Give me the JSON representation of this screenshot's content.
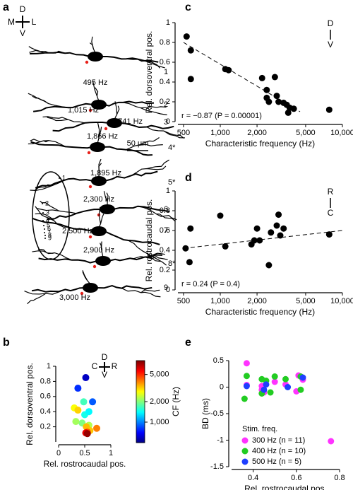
{
  "panel_labels": [
    "a",
    "b",
    "c",
    "d",
    "e"
  ],
  "panel_a": {
    "orientation": {
      "top": "D",
      "left": "M",
      "right": "L",
      "bottom": "V"
    },
    "scale_bar": "50 μm",
    "cells": [
      {
        "number": "1",
        "cf": "495 Hz"
      },
      {
        "number": "2",
        "cf": "1,015 Hz"
      },
      {
        "number": "3",
        "cf": "1,741 Hz"
      },
      {
        "number": "4*",
        "cf": "1,866 Hz"
      },
      {
        "number": "5*",
        "cf": "1,895 Hz"
      },
      {
        "number": "6",
        "cf": "2,300 Hz"
      },
      {
        "number": "7",
        "cf": "2,500 Hz"
      },
      {
        "number": "8*",
        "cf": "2,900 Hz"
      },
      {
        "number": "9",
        "cf": "3,000 Hz"
      }
    ],
    "inset_labels": [
      "1",
      "2",
      "3",
      "4",
      "5",
      "6",
      "7",
      "8",
      "9"
    ]
  },
  "chart_data": [
    {
      "type": "scatter",
      "xlabel": "Rel. rostrocaudal pos.",
      "ylabel": "Rel. dorsoventral pos.",
      "xlim": [
        0,
        1
      ],
      "xticks": [
        0,
        0.5,
        1
      ],
      "ylim": [
        0,
        1
      ],
      "yticks": [
        0.2,
        0.4,
        0.6,
        0.8,
        1
      ],
      "x": [
        0.52,
        0.37,
        0.65,
        0.48,
        0.5,
        0.58,
        0.45,
        0.33,
        0.58,
        0.3,
        0.37,
        0.53,
        0.6,
        0.55,
        0.73,
        0.52,
        0.55
      ],
      "values": [
        0.85,
        0.71,
        0.53,
        0.53,
        0.36,
        0.4,
        0.25,
        0.27,
        0.22,
        0.45,
        0.42,
        0.2,
        0.15,
        0.13,
        0.18,
        0.12,
        0.11
      ],
      "color_values": [
        600,
        800,
        900,
        1700,
        1500,
        1400,
        2000,
        2200,
        2300,
        2800,
        3200,
        3400,
        3300,
        4500,
        4000,
        6000,
        7500
      ],
      "colorbar": {
        "label": "CF (Hz)",
        "log": true,
        "colormap": "jet",
        "lim": [
          500,
          8000
        ],
        "ticks": [
          {
            "value": 1000,
            "label": "1,000"
          },
          {
            "value": 2000,
            "label": "2,000"
          },
          {
            "value": 5000,
            "label": "5,000"
          }
        ]
      },
      "orientation": {
        "top": "D",
        "left": "C",
        "right": "R",
        "bottom": "V"
      }
    },
    {
      "type": "scatter",
      "log_x": true,
      "color": "#000000",
      "xlabel": "Characteristic frequency (Hz)",
      "ylabel": "Rel. dorsoventral pos.",
      "xlim": [
        450,
        10000
      ],
      "xticks": [
        500,
        {
          "value": 1000,
          "label": "1,000"
        },
        {
          "value": 2000,
          "label": "2,000"
        },
        {
          "value": 5000,
          "label": "5,000"
        },
        {
          "value": 10000,
          "label": "10,000"
        }
      ],
      "ylim": [
        0,
        1
      ],
      "yticks": [
        0,
        0.2,
        0.4,
        0.6,
        0.8,
        1
      ],
      "x": [
        530,
        574,
        574,
        1100,
        1170,
        2200,
        2400,
        2400,
        2500,
        2800,
        2900,
        3000,
        3300,
        3500,
        3600,
        3700,
        4000,
        7800
      ],
      "values": [
        0.86,
        0.72,
        0.43,
        0.53,
        0.52,
        0.44,
        0.32,
        0.24,
        0.2,
        0.45,
        0.26,
        0.2,
        0.19,
        0.17,
        0.09,
        0.14,
        0.13,
        0.12
      ],
      "fit": {
        "x": [
          500,
          4500
        ],
        "y": [
          0.8,
          0.1
        ]
      },
      "annotation": "r = −0.87 (P = 0.00001)",
      "orientation": {
        "top": "D",
        "bottom": "V"
      }
    },
    {
      "type": "scatter",
      "log_x": true,
      "color": "#000000",
      "xlabel": "Characteristic frequency (Hz)",
      "ylabel": "Rel. rostrocaudal pos.",
      "xlim": [
        450,
        10000
      ],
      "xticks": [
        500,
        {
          "value": 1000,
          "label": "1,000"
        },
        {
          "value": 2000,
          "label": "2,000"
        },
        {
          "value": 5000,
          "label": "5,000"
        },
        {
          "value": 10000,
          "label": "10,000"
        }
      ],
      "ylim": [
        0,
        1
      ],
      "yticks": [
        0,
        0.2,
        0.4,
        0.6,
        0.8,
        1
      ],
      "x": [
        520,
        560,
        570,
        1000,
        1100,
        1800,
        1900,
        2000,
        2100,
        2500,
        2600,
        2900,
        3000,
        3100,
        3300,
        7800
      ],
      "values": [
        0.42,
        0.28,
        0.62,
        0.75,
        0.44,
        0.46,
        0.5,
        0.62,
        0.5,
        0.25,
        0.58,
        0.65,
        0.76,
        0.55,
        0.62,
        0.56
      ],
      "fit": {
        "x": [
          500,
          10000
        ],
        "y": [
          0.42,
          0.6
        ]
      },
      "annotation": "r = 0.24 (P = 0.4)",
      "orientation": {
        "top": "R",
        "bottom": "C"
      }
    },
    {
      "type": "scatter",
      "xlabel": "Rel. rostrocaudal pos.",
      "ylabel": "BD (ms)",
      "xlim": [
        0.3,
        0.8
      ],
      "xticks": [
        0.4,
        0.6,
        0.8
      ],
      "ylim": [
        -1.5,
        0.5
      ],
      "yticks": [
        0.5,
        0,
        -0.5,
        -1,
        -1.5
      ],
      "legend_title": "Stim. freq.",
      "series": [
        {
          "name": "300 Hz (n = 11)",
          "color": "#ff33ff",
          "x": [
            0.37,
            0.37,
            0.44,
            0.44,
            0.45,
            0.5,
            0.55,
            0.6,
            0.61,
            0.63,
            0.76
          ],
          "values": [
            0.45,
            0.04,
            0.02,
            -0.05,
            -0.1,
            0.1,
            0.05,
            -0.08,
            0.22,
            0.14,
            -1.02
          ]
        },
        {
          "name": "400 Hz (n = 10)",
          "color": "#22cc22",
          "x": [
            0.37,
            0.36,
            0.44,
            0.44,
            0.46,
            0.48,
            0.5,
            0.55,
            0.62,
            0.62
          ],
          "values": [
            0.21,
            -0.22,
            0.15,
            -0.12,
            0.12,
            -0.1,
            0.2,
            0.15,
            0.2,
            -0.05
          ]
        },
        {
          "name": "500 Hz (n = 5)",
          "color": "#1f3fff",
          "x": [
            0.37,
            0.45,
            0.46,
            0.56,
            0.63
          ],
          "values": [
            0.02,
            -0.05,
            0.05,
            0.0,
            0.18
          ]
        }
      ]
    }
  ]
}
